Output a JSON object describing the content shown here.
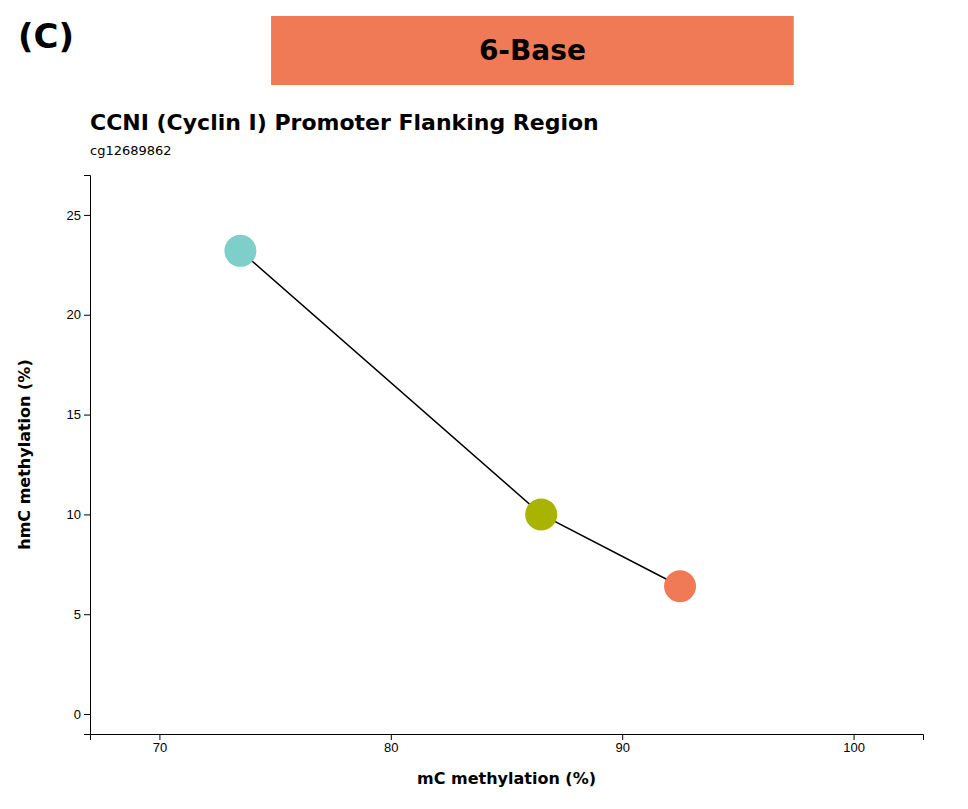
{
  "chart_data": {
    "type": "scatter",
    "title": "CCNI (Cyclin I) Promoter Flanking Region",
    "subtitle": "cg12689862",
    "xlabel": "mC methylation (%)",
    "ylabel": "hmC methylation (%)",
    "annotations": [
      {
        "text": "(C)"
      },
      {
        "text": "6-Base",
        "color": "#F07A55"
      }
    ],
    "x": [
      73.5,
      86.5,
      92.5
    ],
    "values": [
      23.2,
      10.0,
      6.4
    ],
    "colors": [
      "#7ECECA",
      "#A8B400",
      "#F07A55"
    ],
    "color": "#000000",
    "xlim": [
      67,
      103
    ],
    "ylim": [
      -1,
      27
    ],
    "xticks": [
      70,
      80,
      90,
      100
    ],
    "yticks": [
      0,
      5,
      10,
      15,
      20,
      25
    ]
  }
}
